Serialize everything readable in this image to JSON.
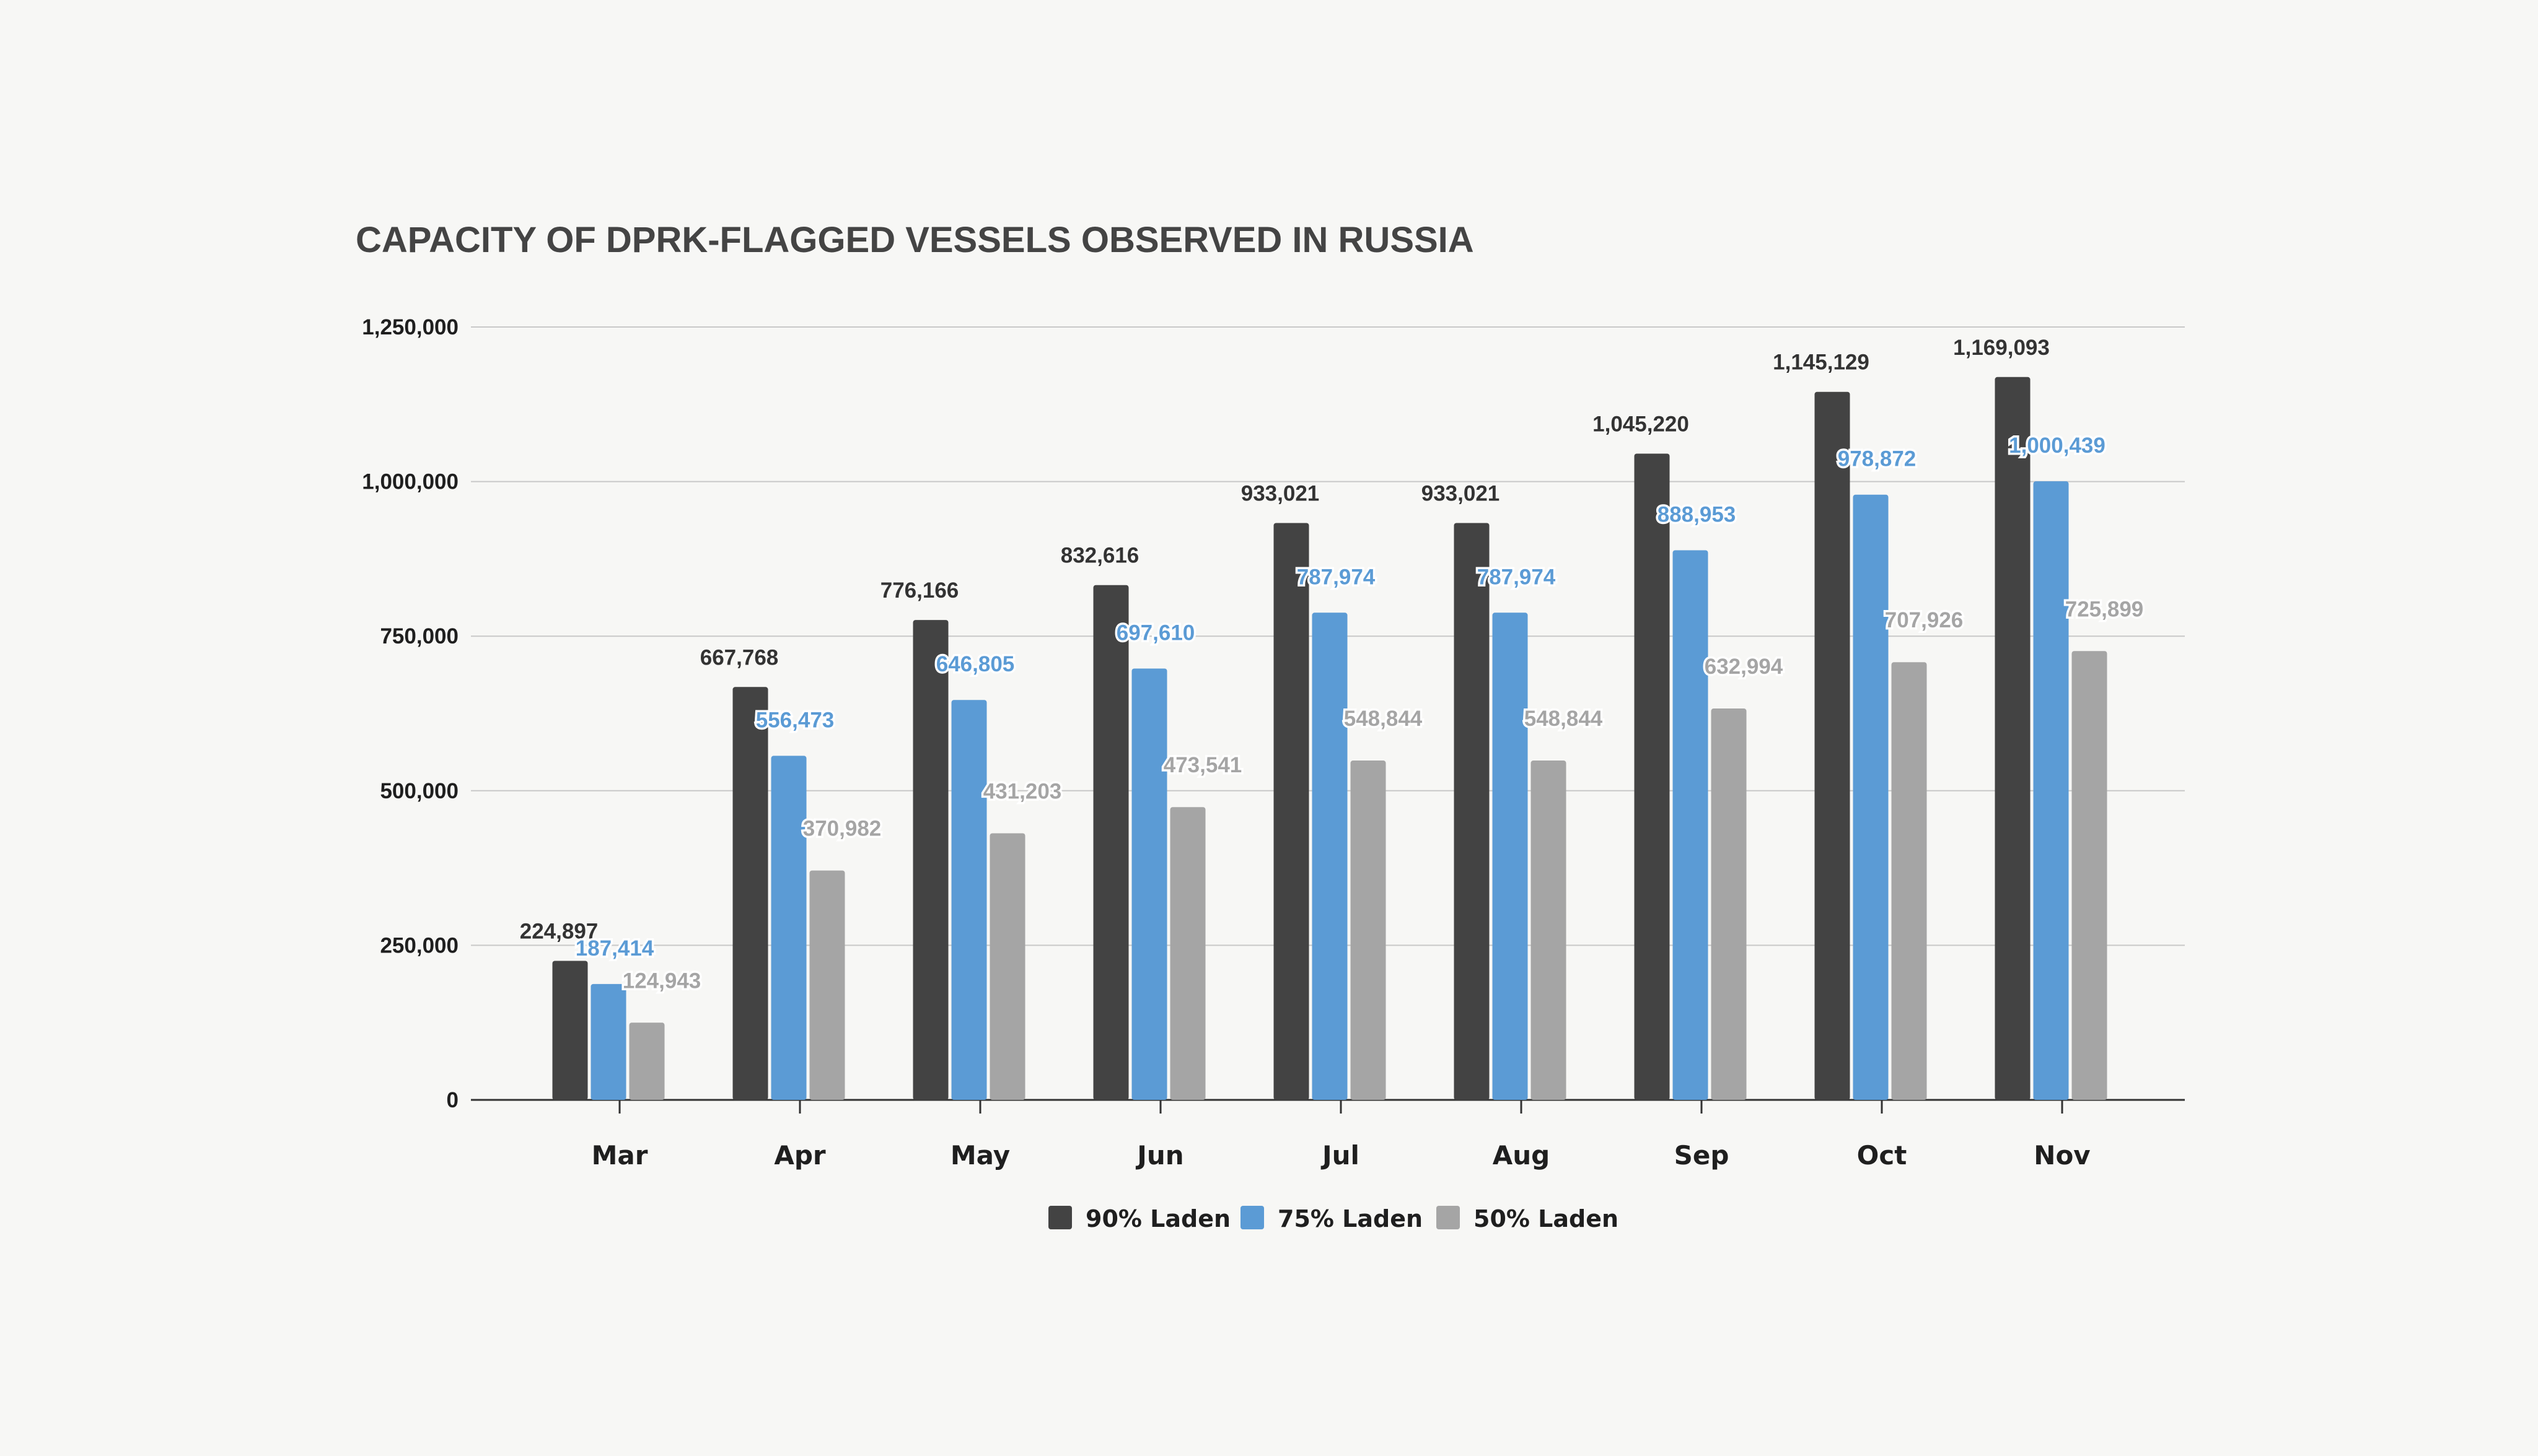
{
  "chart_data": {
    "type": "bar",
    "title": "CAPACITY OF DPRK-FLAGGED VESSELS OBSERVED IN RUSSIA",
    "categories": [
      "Mar",
      "Apr",
      "May",
      "Jun",
      "Jul",
      "Aug",
      "Sep",
      "Oct",
      "Nov"
    ],
    "series": [
      {
        "name": "90% Laden",
        "color": "#434343",
        "values": [
          224897,
          667768,
          776166,
          832616,
          933021,
          933021,
          1045220,
          1145129,
          1169093
        ],
        "labels": [
          "224,897",
          "667,768",
          "776,166",
          "832,616",
          "933,021",
          "933,021",
          "1,045,220",
          "1,145,129",
          "1,169,093"
        ]
      },
      {
        "name": "75% Laden",
        "color": "#5b9bd5",
        "values": [
          187414,
          556473,
          646805,
          697610,
          787974,
          787974,
          888953,
          978872,
          1000439
        ],
        "labels": [
          "187,414",
          "556,473",
          "646,805",
          "697,610",
          "787,974",
          "787,974",
          "888,953",
          "978,872",
          "1,000,439"
        ]
      },
      {
        "name": "50% Laden",
        "color": "#a5a5a5",
        "values": [
          124943,
          370982,
          431203,
          473541,
          548844,
          548844,
          632994,
          707926,
          725899
        ],
        "labels": [
          "124,943",
          "370,982",
          "431,203",
          "473,541",
          "548,844",
          "548,844",
          "632,994",
          "707,926",
          "725,899"
        ]
      }
    ],
    "yticks": [
      0,
      250000,
      500000,
      750000,
      1000000,
      1250000
    ],
    "ytick_labels": [
      "0",
      "250,000",
      "500,000",
      "750,000",
      "1,000,000",
      "1,250,000"
    ],
    "ylim": [
      0,
      1250000
    ],
    "grid": true,
    "legend": "bottom-center"
  }
}
